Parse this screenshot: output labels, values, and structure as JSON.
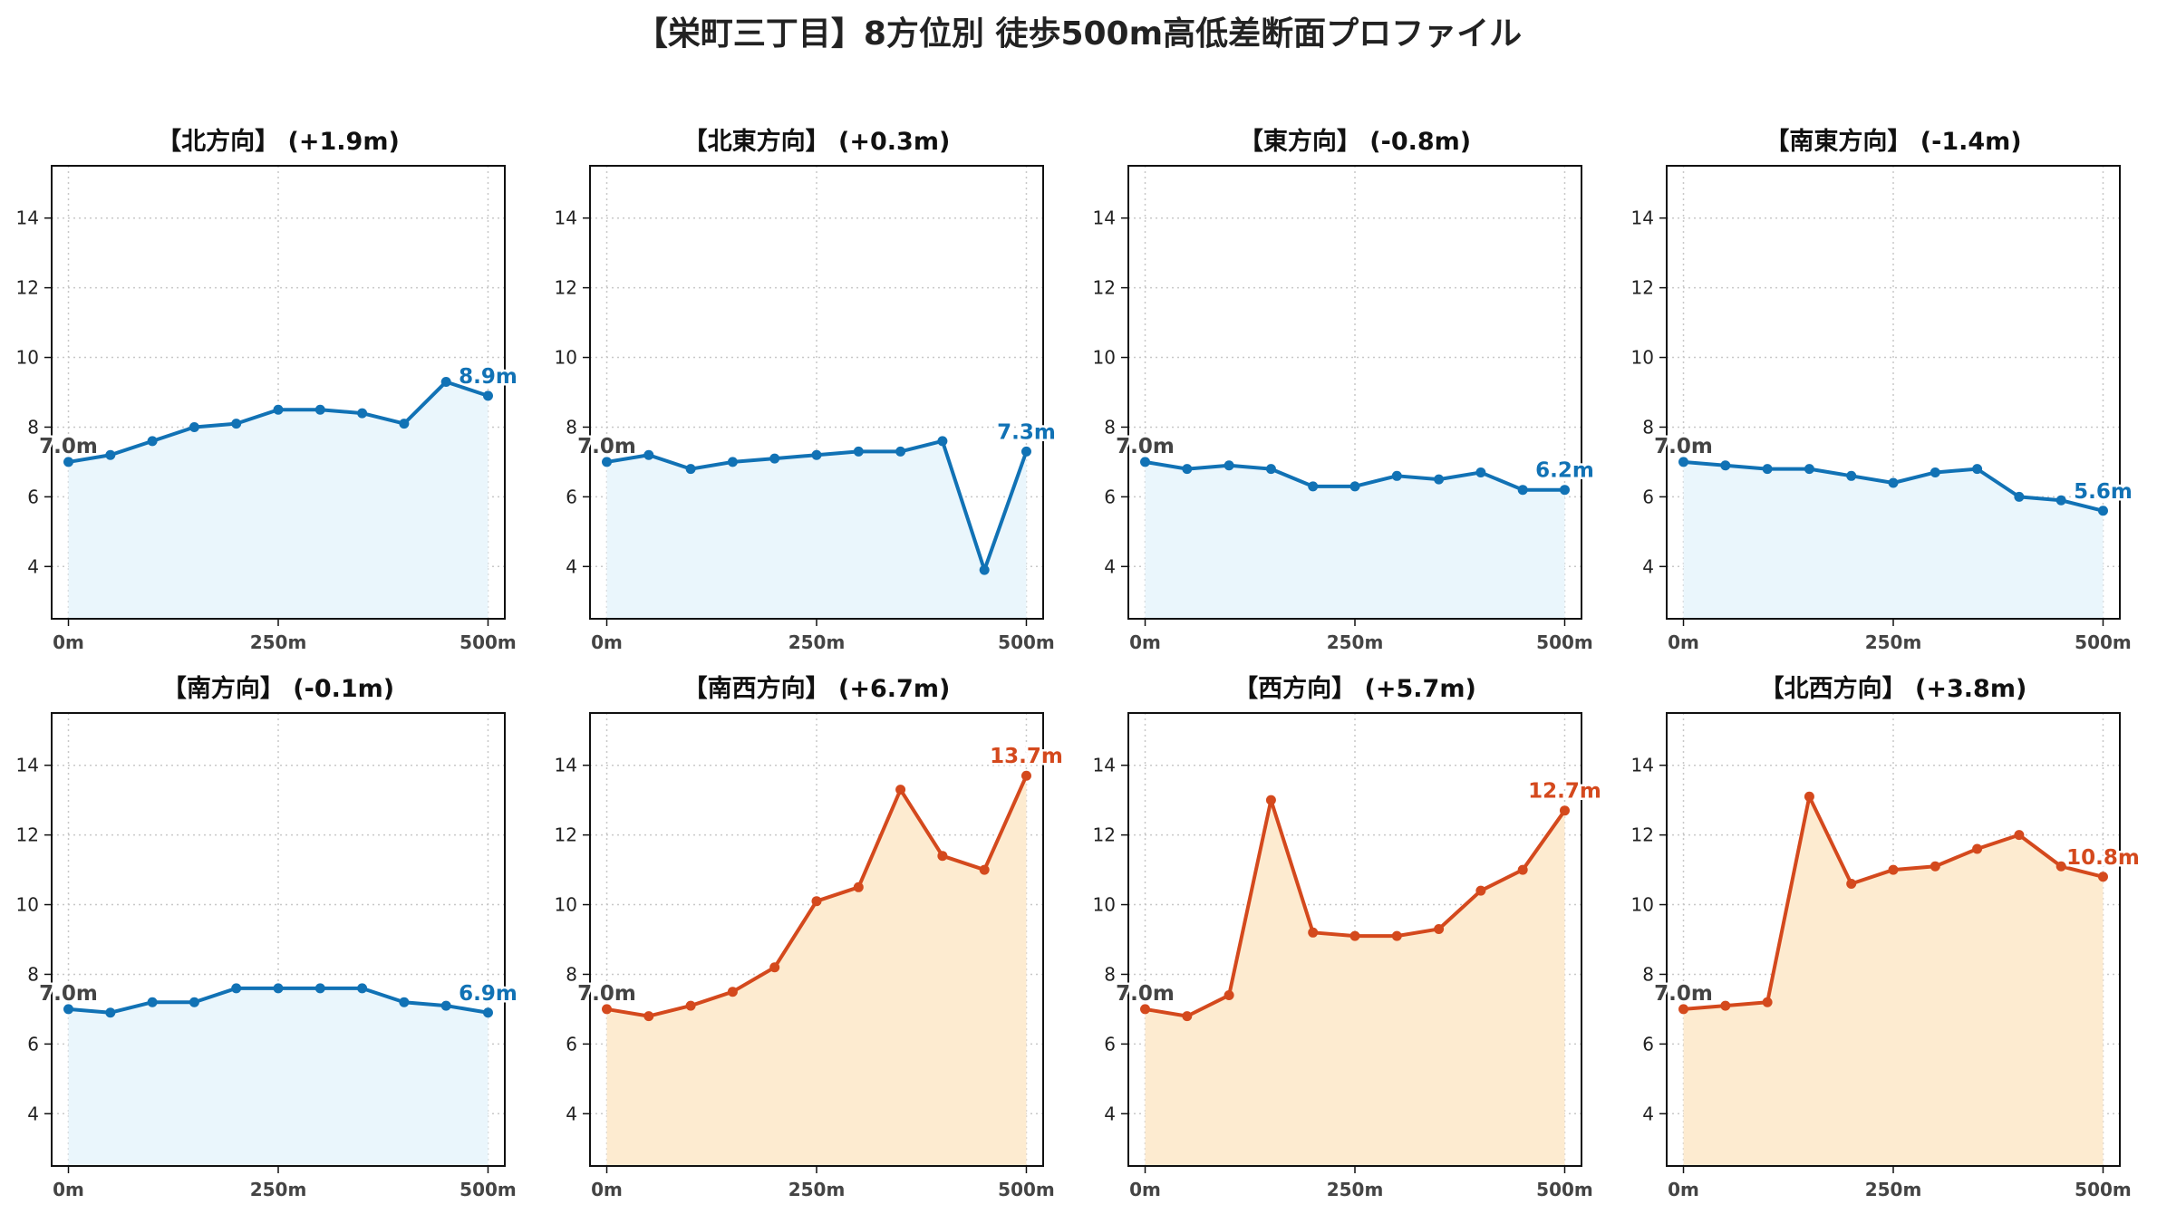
{
  "suptitle": "【栄町三丁目】8方位別 徒歩500m高低差断面プロファイル",
  "colors": {
    "up_line": "#d4491d",
    "up_fill": "#fdebd0",
    "down_line": "#1172b5",
    "down_fill": "#eaf6fc",
    "start_label": "#444444",
    "grid": "#c8c8c8"
  },
  "chart_data": [
    {
      "type": "line",
      "title": "【北方向】 (+1.9m)",
      "trend": "down",
      "x": [
        0,
        50,
        100,
        150,
        200,
        250,
        300,
        350,
        400,
        450,
        500
      ],
      "values": [
        7.0,
        7.2,
        7.6,
        8.0,
        8.1,
        8.5,
        8.5,
        8.4,
        8.1,
        9.3,
        8.9
      ],
      "start_label": "7.0m",
      "end_label": "8.9m",
      "xticks": [
        "0m",
        "250m",
        "500m"
      ],
      "yticks": [
        "4",
        "6",
        "8",
        "10",
        "12",
        "14"
      ],
      "ylim": [
        2.5,
        15.5
      ],
      "grid": true
    },
    {
      "type": "line",
      "title": "【北東方向】 (+0.3m)",
      "trend": "down",
      "x": [
        0,
        50,
        100,
        150,
        200,
        250,
        300,
        350,
        400,
        450,
        500
      ],
      "values": [
        7.0,
        7.2,
        6.8,
        7.0,
        7.1,
        7.2,
        7.3,
        7.3,
        7.6,
        3.9,
        7.3
      ],
      "start_label": "7.0m",
      "end_label": "7.3m",
      "xticks": [
        "0m",
        "250m",
        "500m"
      ],
      "yticks": [
        "4",
        "6",
        "8",
        "10",
        "12",
        "14"
      ],
      "ylim": [
        2.5,
        15.5
      ],
      "grid": true
    },
    {
      "type": "line",
      "title": "【東方向】 (-0.8m)",
      "trend": "down",
      "x": [
        0,
        50,
        100,
        150,
        200,
        250,
        300,
        350,
        400,
        450,
        500
      ],
      "values": [
        7.0,
        6.8,
        6.9,
        6.8,
        6.3,
        6.3,
        6.6,
        6.5,
        6.7,
        6.2,
        6.2
      ],
      "start_label": "7.0m",
      "end_label": "6.2m",
      "xticks": [
        "0m",
        "250m",
        "500m"
      ],
      "yticks": [
        "4",
        "6",
        "8",
        "10",
        "12",
        "14"
      ],
      "ylim": [
        2.5,
        15.5
      ],
      "grid": true
    },
    {
      "type": "line",
      "title": "【南東方向】 (-1.4m)",
      "trend": "down",
      "x": [
        0,
        50,
        100,
        150,
        200,
        250,
        300,
        350,
        400,
        450,
        500
      ],
      "values": [
        7.0,
        6.9,
        6.8,
        6.8,
        6.6,
        6.4,
        6.7,
        6.8,
        6.0,
        5.9,
        5.6
      ],
      "start_label": "7.0m",
      "end_label": "5.6m",
      "xticks": [
        "0m",
        "250m",
        "500m"
      ],
      "yticks": [
        "4",
        "6",
        "8",
        "10",
        "12",
        "14"
      ],
      "ylim": [
        2.5,
        15.5
      ],
      "grid": true
    },
    {
      "type": "line",
      "title": "【南方向】 (-0.1m)",
      "trend": "down",
      "x": [
        0,
        50,
        100,
        150,
        200,
        250,
        300,
        350,
        400,
        450,
        500
      ],
      "values": [
        7.0,
        6.9,
        7.2,
        7.2,
        7.6,
        7.6,
        7.6,
        7.6,
        7.2,
        7.1,
        6.9
      ],
      "start_label": "7.0m",
      "end_label": "6.9m",
      "xticks": [
        "0m",
        "250m",
        "500m"
      ],
      "yticks": [
        "4",
        "6",
        "8",
        "10",
        "12",
        "14"
      ],
      "ylim": [
        2.5,
        15.5
      ],
      "grid": true
    },
    {
      "type": "line",
      "title": "【南西方向】 (+6.7m)",
      "trend": "up",
      "x": [
        0,
        50,
        100,
        150,
        200,
        250,
        300,
        350,
        400,
        450,
        500
      ],
      "values": [
        7.0,
        6.8,
        7.1,
        7.5,
        8.2,
        10.1,
        10.5,
        13.3,
        11.4,
        11.0,
        13.7
      ],
      "start_label": "7.0m",
      "end_label": "13.7m",
      "xticks": [
        "0m",
        "250m",
        "500m"
      ],
      "yticks": [
        "4",
        "6",
        "8",
        "10",
        "12",
        "14"
      ],
      "ylim": [
        2.5,
        15.5
      ],
      "grid": true
    },
    {
      "type": "line",
      "title": "【西方向】 (+5.7m)",
      "trend": "up",
      "x": [
        0,
        50,
        100,
        150,
        200,
        250,
        300,
        350,
        400,
        450,
        500
      ],
      "values": [
        7.0,
        6.8,
        7.4,
        13.0,
        9.2,
        9.1,
        9.1,
        9.3,
        10.4,
        11.0,
        12.7
      ],
      "start_label": "7.0m",
      "end_label": "12.7m",
      "xticks": [
        "0m",
        "250m",
        "500m"
      ],
      "yticks": [
        "4",
        "6",
        "8",
        "10",
        "12",
        "14"
      ],
      "ylim": [
        2.5,
        15.5
      ],
      "grid": true
    },
    {
      "type": "line",
      "title": "【北西方向】 (+3.8m)",
      "trend": "up",
      "x": [
        0,
        50,
        100,
        150,
        200,
        250,
        300,
        350,
        400,
        450,
        500
      ],
      "values": [
        7.0,
        7.1,
        7.2,
        13.1,
        10.6,
        11.0,
        11.1,
        11.6,
        12.0,
        11.1,
        10.8
      ],
      "start_label": "7.0m",
      "end_label": "10.8m",
      "xticks": [
        "0m",
        "250m",
        "500m"
      ],
      "yticks": [
        "4",
        "6",
        "8",
        "10",
        "12",
        "14"
      ],
      "ylim": [
        2.5,
        15.5
      ],
      "grid": true
    }
  ]
}
